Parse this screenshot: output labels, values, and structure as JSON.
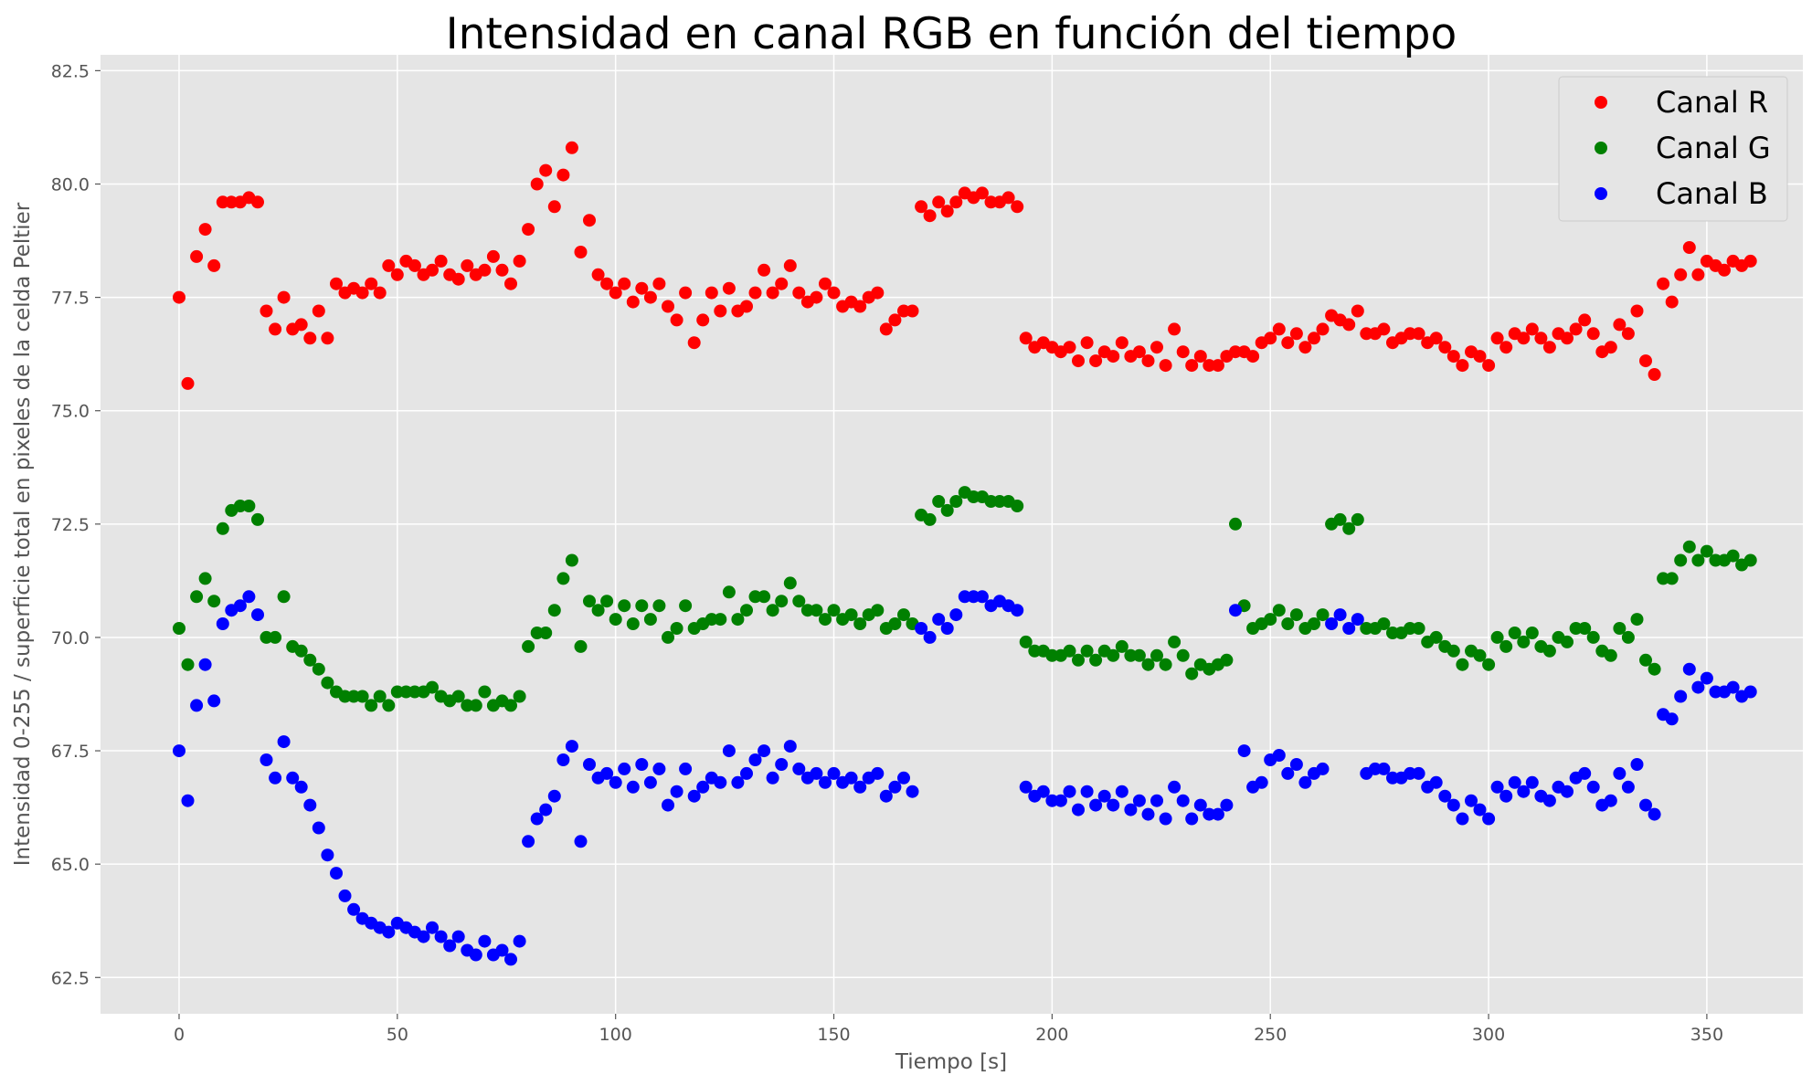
{
  "chart_data": {
    "type": "scatter",
    "title": "Intensidad en canal RGB en función del tiempo",
    "xlabel": "Tiempo [s]",
    "ylabel": "Intensidad 0-255 / superficie total en pixeles de la celda Peltier",
    "xlim": [
      -18,
      372
    ],
    "ylim": [
      61.7,
      82.85
    ],
    "xticks": [
      0,
      50,
      100,
      150,
      200,
      250,
      300,
      350
    ],
    "yticks": [
      62.5,
      65.0,
      67.5,
      70.0,
      72.5,
      75.0,
      77.5,
      80.0,
      82.5
    ],
    "ytick_labels": [
      "62.5",
      "65.0",
      "67.5",
      "70.0",
      "72.5",
      "75.0",
      "77.5",
      "80.0",
      "82.5"
    ],
    "grid": true,
    "legend_position": "top-right",
    "style": "ggplot",
    "x": [
      0,
      2,
      4,
      6,
      8,
      10,
      12,
      14,
      16,
      18,
      20,
      22,
      24,
      26,
      28,
      30,
      32,
      34,
      36,
      38,
      40,
      42,
      44,
      46,
      48,
      50,
      52,
      54,
      56,
      58,
      60,
      62,
      64,
      66,
      68,
      70,
      72,
      74,
      76,
      78,
      80,
      82,
      84,
      86,
      88,
      90,
      92,
      94,
      96,
      98,
      100,
      102,
      104,
      106,
      108,
      110,
      112,
      114,
      116,
      118,
      120,
      122,
      124,
      126,
      128,
      130,
      132,
      134,
      136,
      138,
      140,
      142,
      144,
      146,
      148,
      150,
      152,
      154,
      156,
      158,
      160,
      162,
      164,
      166,
      168,
      170,
      172,
      174,
      176,
      178,
      180,
      182,
      184,
      186,
      188,
      190,
      192,
      194,
      196,
      198,
      200,
      202,
      204,
      206,
      208,
      210,
      212,
      214,
      216,
      218,
      220,
      222,
      224,
      226,
      228,
      230,
      232,
      234,
      236,
      238,
      240,
      242,
      244,
      246,
      248,
      250,
      252,
      254,
      256,
      258,
      260,
      262,
      264,
      266,
      268,
      270,
      272,
      274,
      276,
      278,
      280,
      282,
      284,
      286,
      288,
      290,
      292,
      294,
      296,
      298,
      300,
      302,
      304,
      306,
      308,
      310,
      312,
      314,
      316,
      318,
      320,
      322,
      324,
      326,
      328,
      330,
      332,
      334,
      336,
      338,
      340,
      342,
      344,
      346,
      348,
      350,
      352,
      354,
      356,
      358,
      360
    ],
    "series": [
      {
        "name": "Canal R",
        "color": "#ff0000",
        "values": [
          77.5,
          75.6,
          78.4,
          79.0,
          78.2,
          79.6,
          79.6,
          79.6,
          79.7,
          79.6,
          77.2,
          76.8,
          77.5,
          76.8,
          76.9,
          76.6,
          77.2,
          76.6,
          77.8,
          77.6,
          77.7,
          77.6,
          77.8,
          77.6,
          78.2,
          78.0,
          78.3,
          78.2,
          78.0,
          78.1,
          78.3,
          78.0,
          77.9,
          78.2,
          78.0,
          78.1,
          78.4,
          78.1,
          77.8,
          78.3,
          79.0,
          80.0,
          80.3,
          79.5,
          80.2,
          80.8,
          78.5,
          79.2,
          78.0,
          77.8,
          77.6,
          77.8,
          77.4,
          77.7,
          77.5,
          77.8,
          77.3,
          77.0,
          77.6,
          76.5,
          77.0,
          77.6,
          77.2,
          77.7,
          77.2,
          77.3,
          77.6,
          78.1,
          77.6,
          77.8,
          78.2,
          77.6,
          77.4,
          77.5,
          77.8,
          77.6,
          77.3,
          77.4,
          77.3,
          77.5,
          77.6,
          76.8,
          77.0,
          77.2,
          77.2,
          79.5,
          79.3,
          79.6,
          79.4,
          79.6,
          79.8,
          79.7,
          79.8,
          79.6,
          79.6,
          79.7,
          79.5,
          76.6,
          76.4,
          76.5,
          76.4,
          76.3,
          76.4,
          76.1,
          76.5,
          76.1,
          76.3,
          76.2,
          76.5,
          76.2,
          76.3,
          76.1,
          76.4,
          76.0,
          76.8,
          76.3,
          76.0,
          76.2,
          76.0,
          76.0,
          76.2,
          76.3,
          76.3,
          76.2,
          76.5,
          76.6,
          76.8,
          76.5,
          76.7,
          76.4,
          76.6,
          76.8,
          77.1,
          77.0,
          76.9,
          77.2,
          76.7,
          76.7,
          76.8,
          76.5,
          76.6,
          76.7,
          76.7,
          76.5,
          76.6,
          76.4,
          76.2,
          76.0,
          76.3,
          76.2,
          76.0,
          76.6,
          76.4,
          76.7,
          76.6,
          76.8,
          76.6,
          76.4,
          76.7,
          76.6,
          76.8,
          77.0,
          76.7,
          76.3,
          76.4,
          76.9,
          76.7,
          77.2,
          76.1,
          75.8,
          77.8,
          77.4,
          78.0,
          78.6,
          78.0,
          78.3,
          78.2,
          78.1,
          78.3,
          78.2,
          78.3
        ]
      },
      {
        "name": "Canal G",
        "color": "#008000",
        "values": [
          70.2,
          69.4,
          70.9,
          71.3,
          70.8,
          72.4,
          72.8,
          72.9,
          72.9,
          72.6,
          70.0,
          70.0,
          70.9,
          69.8,
          69.7,
          69.5,
          69.3,
          69.0,
          68.8,
          68.7,
          68.7,
          68.7,
          68.5,
          68.7,
          68.5,
          68.8,
          68.8,
          68.8,
          68.8,
          68.9,
          68.7,
          68.6,
          68.7,
          68.5,
          68.5,
          68.8,
          68.5,
          68.6,
          68.5,
          68.7,
          69.8,
          70.1,
          70.1,
          70.6,
          71.3,
          71.7,
          69.8,
          70.8,
          70.6,
          70.8,
          70.4,
          70.7,
          70.3,
          70.7,
          70.4,
          70.7,
          70.0,
          70.2,
          70.7,
          70.2,
          70.3,
          70.4,
          70.4,
          71.0,
          70.4,
          70.6,
          70.9,
          70.9,
          70.6,
          70.8,
          71.2,
          70.8,
          70.6,
          70.6,
          70.4,
          70.6,
          70.4,
          70.5,
          70.3,
          70.5,
          70.6,
          70.2,
          70.3,
          70.5,
          70.3,
          72.7,
          72.6,
          73.0,
          72.8,
          73.0,
          73.2,
          73.1,
          73.1,
          73.0,
          73.0,
          73.0,
          72.9,
          69.9,
          69.7,
          69.7,
          69.6,
          69.6,
          69.7,
          69.5,
          69.7,
          69.5,
          69.7,
          69.6,
          69.8,
          69.6,
          69.6,
          69.4,
          69.6,
          69.4,
          69.9,
          69.6,
          69.2,
          69.4,
          69.3,
          69.4,
          69.5,
          72.5,
          70.7,
          70.2,
          70.3,
          70.4,
          70.6,
          70.3,
          70.5,
          70.2,
          70.3,
          70.5,
          72.5,
          72.6,
          72.4,
          72.6,
          70.2,
          70.2,
          70.3,
          70.1,
          70.1,
          70.2,
          70.2,
          69.9,
          70.0,
          69.8,
          69.7,
          69.4,
          69.7,
          69.6,
          69.4,
          70.0,
          69.8,
          70.1,
          69.9,
          70.1,
          69.8,
          69.7,
          70.0,
          69.9,
          70.2,
          70.2,
          70.0,
          69.7,
          69.6,
          70.2,
          70.0,
          70.4,
          69.5,
          69.3,
          71.3,
          71.3,
          71.7,
          72.0,
          71.7,
          71.9,
          71.7,
          71.7,
          71.8,
          71.6,
          71.7
        ]
      },
      {
        "name": "Canal B",
        "color": "#0000ff",
        "values": [
          67.5,
          66.4,
          68.5,
          69.4,
          68.6,
          70.3,
          70.6,
          70.7,
          70.9,
          70.5,
          67.3,
          66.9,
          67.7,
          66.9,
          66.7,
          66.3,
          65.8,
          65.2,
          64.8,
          64.3,
          64.0,
          63.8,
          63.7,
          63.6,
          63.5,
          63.7,
          63.6,
          63.5,
          63.4,
          63.6,
          63.4,
          63.2,
          63.4,
          63.1,
          63.0,
          63.3,
          63.0,
          63.1,
          62.9,
          63.3,
          65.5,
          66.0,
          66.2,
          66.5,
          67.3,
          67.6,
          65.5,
          67.2,
          66.9,
          67.0,
          66.8,
          67.1,
          66.7,
          67.2,
          66.8,
          67.1,
          66.3,
          66.6,
          67.1,
          66.5,
          66.7,
          66.9,
          66.8,
          67.5,
          66.8,
          67.0,
          67.3,
          67.5,
          66.9,
          67.2,
          67.6,
          67.1,
          66.9,
          67.0,
          66.8,
          67.0,
          66.8,
          66.9,
          66.7,
          66.9,
          67.0,
          66.5,
          66.7,
          66.9,
          66.6,
          70.2,
          70.0,
          70.4,
          70.2,
          70.5,
          70.9,
          70.9,
          70.9,
          70.7,
          70.8,
          70.7,
          70.6,
          66.7,
          66.5,
          66.6,
          66.4,
          66.4,
          66.6,
          66.2,
          66.6,
          66.3,
          66.5,
          66.3,
          66.6,
          66.2,
          66.4,
          66.1,
          66.4,
          66.0,
          66.7,
          66.4,
          66.0,
          66.3,
          66.1,
          66.1,
          66.3,
          70.6,
          67.5,
          66.7,
          66.8,
          67.3,
          67.4,
          67.0,
          67.2,
          66.8,
          67.0,
          67.1,
          70.3,
          70.5,
          70.2,
          70.4,
          67.0,
          67.1,
          67.1,
          66.9,
          66.9,
          67.0,
          67.0,
          66.7,
          66.8,
          66.5,
          66.3,
          66.0,
          66.4,
          66.2,
          66.0,
          66.7,
          66.5,
          66.8,
          66.6,
          66.8,
          66.5,
          66.4,
          66.7,
          66.6,
          66.9,
          67.0,
          66.7,
          66.3,
          66.4,
          67.0,
          66.7,
          67.2,
          66.3,
          66.1,
          68.3,
          68.2,
          68.7,
          69.3,
          68.9,
          69.1,
          68.8,
          68.8,
          68.9,
          68.7,
          68.8
        ]
      }
    ]
  }
}
